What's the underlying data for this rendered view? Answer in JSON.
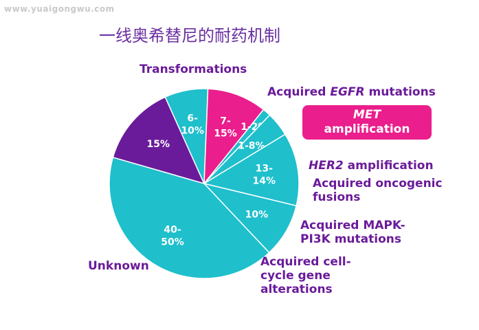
{
  "watermark": "www.yuaigongwu.com",
  "title": "一线奥希替尼的耐药机制",
  "colors": {
    "teal": "#1fbfcc",
    "purple": "#6a1b9a",
    "magenta": "#ea1e8c",
    "title": "#6a2fa0",
    "edge": "#ffffff"
  },
  "chart_data": {
    "type": "pie",
    "title": "一线奥希替尼的耐药机制",
    "slices": [
      {
        "name": "Transformations",
        "label": "15%",
        "value": 15,
        "color": "#6a1b9a"
      },
      {
        "name": "Acquired EGFR mutations",
        "label": "6-\n10%",
        "value": 8,
        "color": "#1fbfcc"
      },
      {
        "name": "MET amplification",
        "label": "7-\n15%",
        "value": 11,
        "color": "#ea1e8c"
      },
      {
        "name": "HER2 amplification",
        "label": "1-2%",
        "value": 1.5,
        "color": "#1fbfcc"
      },
      {
        "name": "Acquired oncogenic fusions",
        "label": "1-8%",
        "value": 4.5,
        "color": "#1fbfcc"
      },
      {
        "name": "Acquired MAPK-PI3K mutations",
        "label": "13-\n14%",
        "value": 13.5,
        "color": "#1fbfcc"
      },
      {
        "name": "Acquired cell-cycle gene alterations",
        "label": "10%",
        "value": 10,
        "color": "#1fbfcc"
      },
      {
        "name": "Unknown",
        "label": "40-\n50%",
        "value": 45,
        "color": "#1fbfcc"
      }
    ]
  },
  "labels": {
    "transformations": "Transformations",
    "egfr_pre": "Acquired ",
    "egfr_it": "EGFR",
    "egfr_post": " mutations",
    "met_it": "MET",
    "met_rest": "amplification",
    "her2_it": "HER2",
    "her2_post": " amplification",
    "fusions_1": "Acquired oncogenic",
    "fusions_2": "fusions",
    "mapk_1": "Acquired MAPK-",
    "mapk_2": "PI3K mutations",
    "cellcycle_1": "Acquired cell-",
    "cellcycle_2": "cycle gene",
    "cellcycle_3": "alterations",
    "unknown": "Unknown"
  }
}
